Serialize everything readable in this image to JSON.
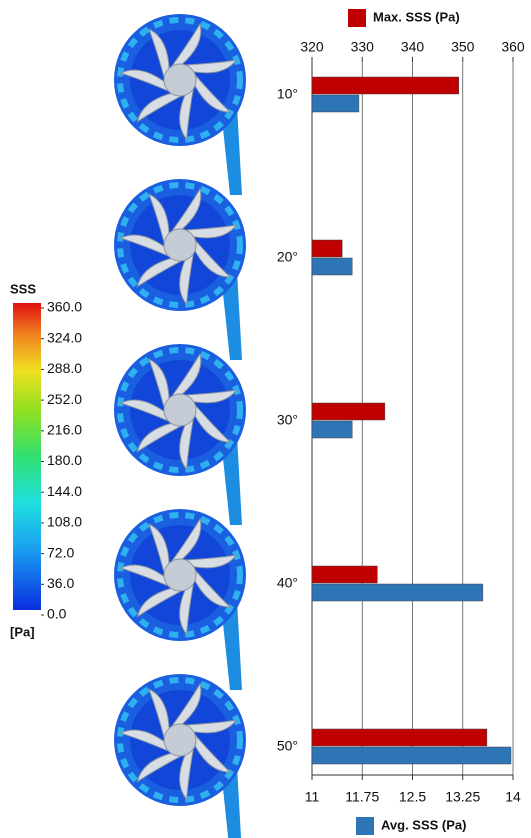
{
  "chart_data": {
    "type": "bar",
    "orientation": "horizontal",
    "categories": [
      "10°",
      "20°",
      "30°",
      "40°",
      "50°"
    ],
    "series": [
      {
        "name": "Max. SSS (Pa)",
        "color": "#c00000",
        "axis": "x2",
        "values": [
          349.2,
          326,
          334.5,
          333,
          354.8
        ]
      },
      {
        "name": "Avg. SSS (Pa)",
        "color": "#2e75b6",
        "axis": "x",
        "values": [
          11.7,
          11.6,
          11.6,
          13.55,
          13.97
        ]
      }
    ],
    "xlim": [
      11,
      14
    ],
    "xticks": [
      11,
      11.75,
      12.5,
      13.25,
      14
    ],
    "x2lim": [
      320,
      360
    ],
    "x2ticks": [
      320,
      330,
      340,
      350,
      360
    ],
    "grid": true
  },
  "colorbar": {
    "title": "SSS",
    "unit": "[Pa]",
    "ticks": [
      {
        "value": 360,
        "label": "360.0"
      },
      {
        "value": 324,
        "label": "324.0"
      },
      {
        "value": 288,
        "label": "288.0"
      },
      {
        "value": 252,
        "label": "252.0"
      },
      {
        "value": 216,
        "label": "216.0"
      },
      {
        "value": 180,
        "label": "180.0"
      },
      {
        "value": 144,
        "label": "144.0"
      },
      {
        "value": 108,
        "label": "108.0"
      },
      {
        "value": 72,
        "label": "72.0"
      },
      {
        "value": 36,
        "label": "36.0"
      },
      {
        "value": 0,
        "label": "0.0"
      }
    ]
  }
}
